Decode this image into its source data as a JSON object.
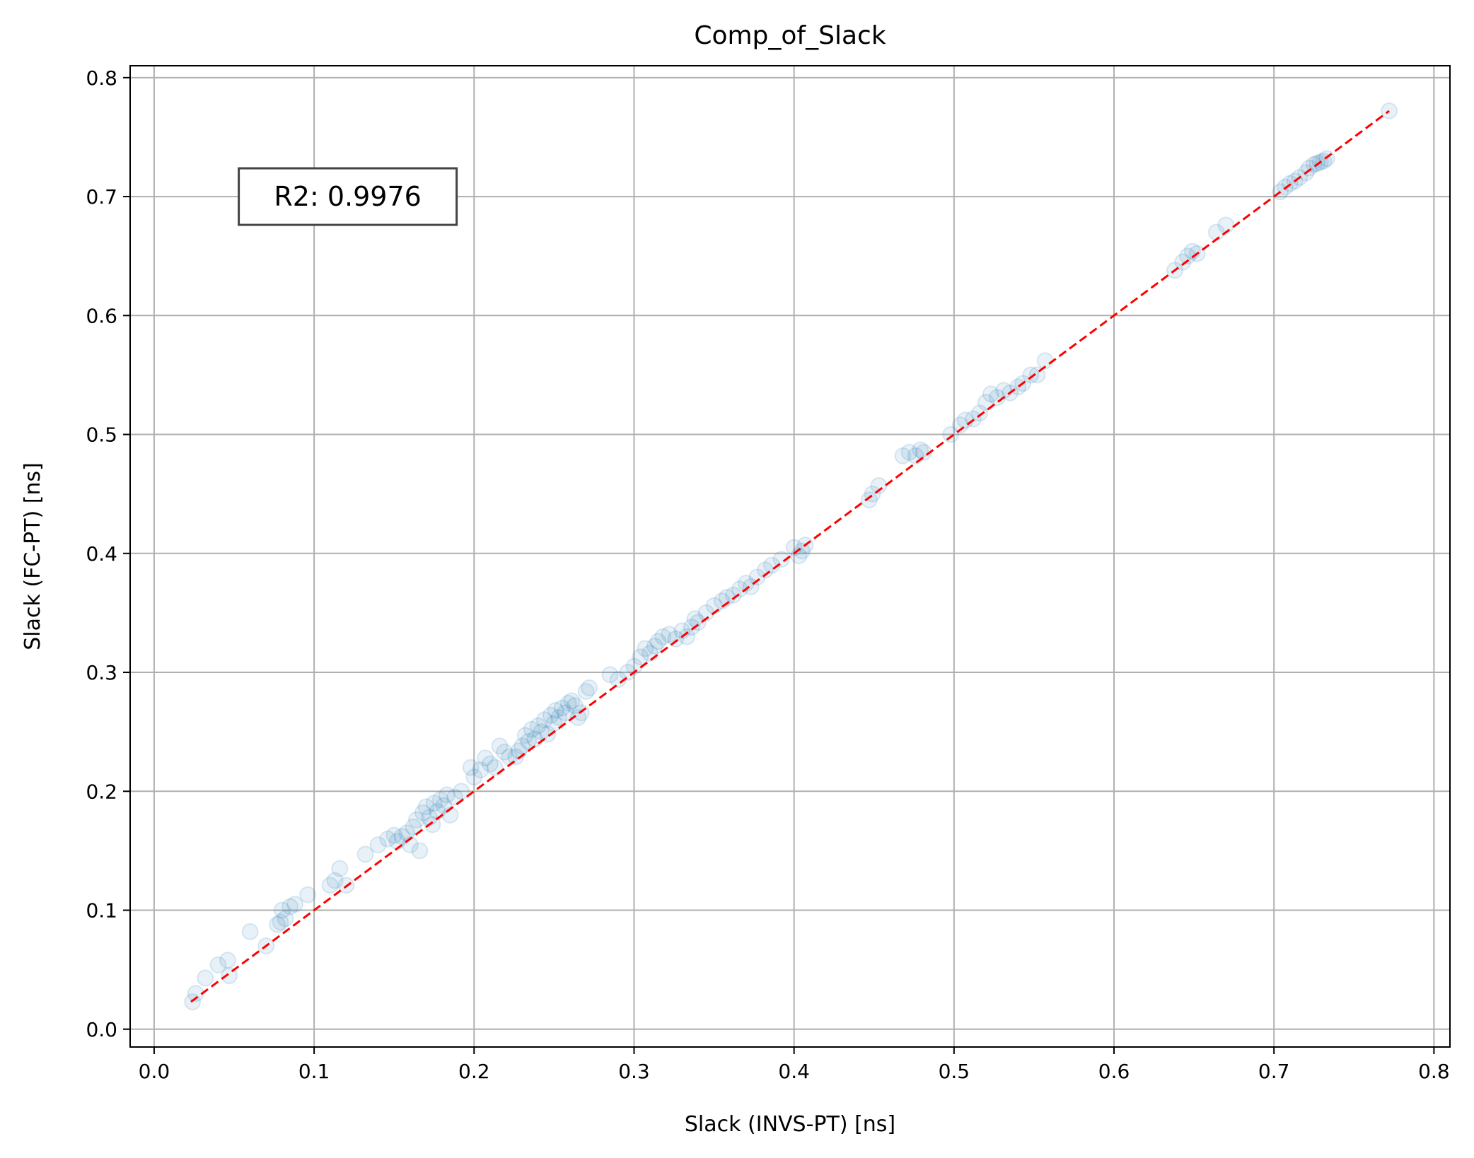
{
  "chart_data": {
    "type": "scatter",
    "title": "Comp_of_Slack",
    "xlabel": "Slack (INVS-PT) [ns]",
    "ylabel": "Slack (FC-PT) [ns]",
    "xlim": [
      -0.015,
      0.81
    ],
    "ylim": [
      -0.015,
      0.81
    ],
    "xticks": [
      0.0,
      0.1,
      0.2,
      0.3,
      0.4,
      0.5,
      0.6,
      0.7,
      0.8
    ],
    "yticks": [
      0.0,
      0.1,
      0.2,
      0.3,
      0.4,
      0.5,
      0.6,
      0.7,
      0.8
    ],
    "xtick_labels": [
      "0.0",
      "0.1",
      "0.2",
      "0.3",
      "0.4",
      "0.5",
      "0.6",
      "0.7",
      "0.8"
    ],
    "ytick_labels": [
      "0.0",
      "0.1",
      "0.2",
      "0.3",
      "0.4",
      "0.5",
      "0.6",
      "0.7",
      "0.8"
    ],
    "grid": true,
    "marker_color": "#1f77b4",
    "reference_line": {
      "from": [
        0.023,
        0.023
      ],
      "to": [
        0.772,
        0.772
      ],
      "color": "#ff0000",
      "style": "dashed"
    },
    "annotation": {
      "text": "R2: 0.9976",
      "x": 0.121,
      "y": 0.7
    },
    "points": [
      [
        0.024,
        0.023
      ],
      [
        0.026,
        0.03
      ],
      [
        0.032,
        0.043
      ],
      [
        0.04,
        0.054
      ],
      [
        0.046,
        0.058
      ],
      [
        0.047,
        0.045
      ],
      [
        0.07,
        0.07
      ],
      [
        0.06,
        0.082
      ],
      [
        0.077,
        0.088
      ],
      [
        0.079,
        0.09
      ],
      [
        0.082,
        0.093
      ],
      [
        0.08,
        0.1
      ],
      [
        0.085,
        0.103
      ],
      [
        0.088,
        0.105
      ],
      [
        0.096,
        0.113
      ],
      [
        0.11,
        0.121
      ],
      [
        0.113,
        0.125
      ],
      [
        0.116,
        0.135
      ],
      [
        0.12,
        0.121
      ],
      [
        0.132,
        0.147
      ],
      [
        0.14,
        0.155
      ],
      [
        0.146,
        0.16
      ],
      [
        0.15,
        0.163
      ],
      [
        0.152,
        0.158
      ],
      [
        0.155,
        0.162
      ],
      [
        0.158,
        0.165
      ],
      [
        0.16,
        0.155
      ],
      [
        0.162,
        0.17
      ],
      [
        0.164,
        0.176
      ],
      [
        0.166,
        0.15
      ],
      [
        0.168,
        0.182
      ],
      [
        0.17,
        0.187
      ],
      [
        0.172,
        0.178
      ],
      [
        0.174,
        0.172
      ],
      [
        0.175,
        0.19
      ],
      [
        0.177,
        0.183
      ],
      [
        0.179,
        0.193
      ],
      [
        0.181,
        0.188
      ],
      [
        0.183,
        0.197
      ],
      [
        0.185,
        0.18
      ],
      [
        0.188,
        0.195
      ],
      [
        0.192,
        0.2
      ],
      [
        0.198,
        0.22
      ],
      [
        0.2,
        0.212
      ],
      [
        0.204,
        0.218
      ],
      [
        0.207,
        0.228
      ],
      [
        0.21,
        0.223
      ],
      [
        0.213,
        0.22
      ],
      [
        0.216,
        0.238
      ],
      [
        0.219,
        0.233
      ],
      [
        0.222,
        0.229
      ],
      [
        0.226,
        0.229
      ],
      [
        0.228,
        0.234
      ],
      [
        0.23,
        0.238
      ],
      [
        0.232,
        0.247
      ],
      [
        0.234,
        0.242
      ],
      [
        0.236,
        0.252
      ],
      [
        0.238,
        0.244
      ],
      [
        0.24,
        0.255
      ],
      [
        0.242,
        0.25
      ],
      [
        0.244,
        0.26
      ],
      [
        0.246,
        0.248
      ],
      [
        0.248,
        0.264
      ],
      [
        0.25,
        0.257
      ],
      [
        0.251,
        0.268
      ],
      [
        0.253,
        0.262
      ],
      [
        0.255,
        0.27
      ],
      [
        0.257,
        0.266
      ],
      [
        0.259,
        0.274
      ],
      [
        0.261,
        0.276
      ],
      [
        0.263,
        0.272
      ],
      [
        0.265,
        0.262
      ],
      [
        0.267,
        0.266
      ],
      [
        0.27,
        0.284
      ],
      [
        0.272,
        0.287
      ],
      [
        0.285,
        0.298
      ],
      [
        0.29,
        0.294
      ],
      [
        0.296,
        0.3
      ],
      [
        0.3,
        0.305
      ],
      [
        0.304,
        0.313
      ],
      [
        0.307,
        0.32
      ],
      [
        0.31,
        0.316
      ],
      [
        0.313,
        0.322
      ],
      [
        0.315,
        0.326
      ],
      [
        0.318,
        0.33
      ],
      [
        0.322,
        0.332
      ],
      [
        0.326,
        0.328
      ],
      [
        0.33,
        0.335
      ],
      [
        0.333,
        0.33
      ],
      [
        0.336,
        0.338
      ],
      [
        0.338,
        0.345
      ],
      [
        0.34,
        0.342
      ],
      [
        0.345,
        0.35
      ],
      [
        0.35,
        0.356
      ],
      [
        0.355,
        0.36
      ],
      [
        0.358,
        0.363
      ],
      [
        0.362,
        0.365
      ],
      [
        0.366,
        0.37
      ],
      [
        0.37,
        0.375
      ],
      [
        0.373,
        0.372
      ],
      [
        0.377,
        0.38
      ],
      [
        0.382,
        0.386
      ],
      [
        0.386,
        0.39
      ],
      [
        0.392,
        0.395
      ],
      [
        0.4,
        0.405
      ],
      [
        0.403,
        0.398
      ],
      [
        0.405,
        0.402
      ],
      [
        0.407,
        0.407
      ],
      [
        0.447,
        0.445
      ],
      [
        0.449,
        0.45
      ],
      [
        0.453,
        0.457
      ],
      [
        0.468,
        0.482
      ],
      [
        0.472,
        0.485
      ],
      [
        0.476,
        0.482
      ],
      [
        0.479,
        0.487
      ],
      [
        0.481,
        0.485
      ],
      [
        0.498,
        0.5
      ],
      [
        0.504,
        0.508
      ],
      [
        0.507,
        0.512
      ],
      [
        0.512,
        0.513
      ],
      [
        0.516,
        0.518
      ],
      [
        0.52,
        0.527
      ],
      [
        0.523,
        0.534
      ],
      [
        0.527,
        0.531
      ],
      [
        0.531,
        0.537
      ],
      [
        0.535,
        0.535
      ],
      [
        0.54,
        0.54
      ],
      [
        0.543,
        0.543
      ],
      [
        0.548,
        0.55
      ],
      [
        0.552,
        0.55
      ],
      [
        0.557,
        0.562
      ],
      [
        0.638,
        0.638
      ],
      [
        0.643,
        0.645
      ],
      [
        0.646,
        0.65
      ],
      [
        0.649,
        0.654
      ],
      [
        0.652,
        0.652
      ],
      [
        0.664,
        0.67
      ],
      [
        0.67,
        0.676
      ],
      [
        0.704,
        0.704
      ],
      [
        0.707,
        0.708
      ],
      [
        0.71,
        0.711
      ],
      [
        0.713,
        0.713
      ],
      [
        0.716,
        0.716
      ],
      [
        0.72,
        0.72
      ],
      [
        0.722,
        0.724
      ],
      [
        0.725,
        0.727
      ],
      [
        0.727,
        0.728
      ],
      [
        0.729,
        0.729
      ],
      [
        0.731,
        0.73
      ],
      [
        0.733,
        0.732
      ],
      [
        0.772,
        0.772
      ]
    ]
  }
}
